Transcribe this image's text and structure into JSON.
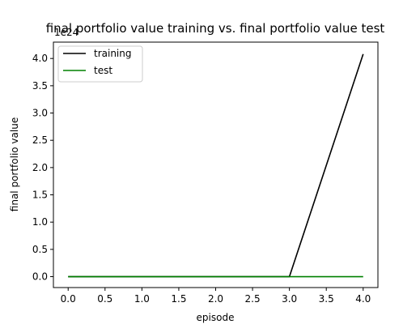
{
  "chart_data": {
    "type": "line",
    "title": "final portfolio value training vs. final portfolio value test",
    "xlabel": "episode",
    "ylabel": "final portfolio value",
    "y_offset_text": "1e24",
    "xlim": [
      -0.2,
      4.2
    ],
    "ylim": [
      -0.2,
      4.3
    ],
    "x_ticks": [
      0.0,
      0.5,
      1.0,
      1.5,
      2.0,
      2.5,
      3.0,
      3.5,
      4.0
    ],
    "x_tick_labels": [
      "0.0",
      "0.5",
      "1.0",
      "1.5",
      "2.0",
      "2.5",
      "3.0",
      "3.5",
      "4.0"
    ],
    "y_ticks": [
      0.0,
      0.5,
      1.0,
      1.5,
      2.0,
      2.5,
      3.0,
      3.5,
      4.0
    ],
    "y_tick_labels": [
      "0.0",
      "0.5",
      "1.0",
      "1.5",
      "2.0",
      "2.5",
      "3.0",
      "3.5",
      "4.0"
    ],
    "legend_position": "upper-left",
    "grid": false,
    "x": [
      0,
      1,
      2,
      3,
      4
    ],
    "series": [
      {
        "name": "training",
        "color": "#000000",
        "values": [
          0,
          0,
          0,
          0,
          4.08
        ]
      },
      {
        "name": "test",
        "color": "#008000",
        "values": [
          0,
          0,
          0,
          0,
          0
        ]
      }
    ]
  }
}
